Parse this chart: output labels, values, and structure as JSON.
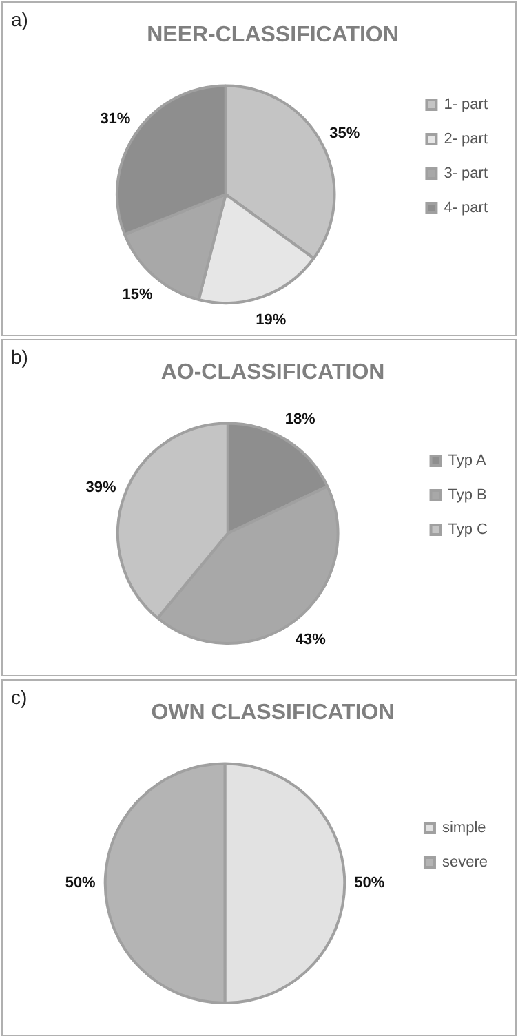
{
  "chart_data": [
    {
      "type": "pie",
      "title": "NEER-CLASSIFICATION",
      "annotations": [
        "a)"
      ],
      "categories": [
        "1- part",
        "2- part",
        "3- part",
        "4- part"
      ],
      "values": [
        35,
        19,
        15,
        31
      ],
      "value_labels": [
        "35%",
        "19%",
        "15%",
        "31%"
      ],
      "colors": [
        "#c4c4c4",
        "#e6e6e6",
        "#a8a8a8",
        "#8e8e8e"
      ],
      "legend": "right"
    },
    {
      "type": "pie",
      "title": "AO-CLASSIFICATION",
      "annotations": [
        "b)"
      ],
      "categories": [
        "Typ A",
        "Typ B",
        "Typ C"
      ],
      "values": [
        18,
        43,
        39
      ],
      "value_labels": [
        "18%",
        "43%",
        "39%"
      ],
      "colors": [
        "#8e8e8e",
        "#a8a8a8",
        "#c4c4c4"
      ],
      "legend": "right"
    },
    {
      "type": "pie",
      "title": "OWN CLASSIFICATION",
      "annotations": [
        "c)"
      ],
      "categories": [
        "simple",
        "severe"
      ],
      "values": [
        50,
        50
      ],
      "value_labels": [
        "50%",
        "50%"
      ],
      "colors": [
        "#e2e2e2",
        "#b4b4b4"
      ],
      "legend": "right"
    }
  ]
}
